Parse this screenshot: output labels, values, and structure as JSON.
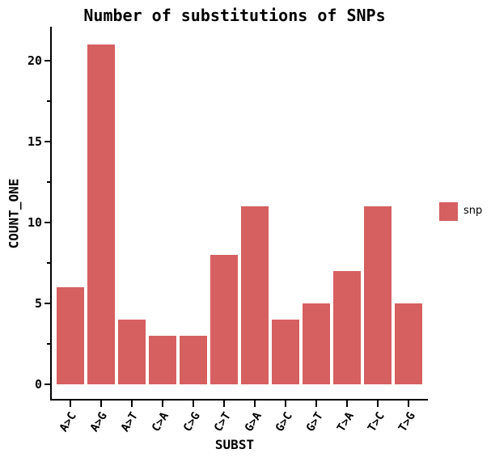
{
  "chart_data": {
    "type": "bar",
    "title": "Number of substitutions of SNPs",
    "xlabel": "SUBST",
    "ylabel": "COUNT_ONE",
    "categories": [
      "A>C",
      "A>G",
      "A>T",
      "C>A",
      "C>G",
      "C>T",
      "G>A",
      "G>C",
      "G>T",
      "T>A",
      "T>C",
      "T>G"
    ],
    "values": [
      6,
      21,
      4,
      3,
      3,
      8,
      11,
      4,
      5,
      7,
      11,
      5
    ],
    "series_name": "snp",
    "bar_color": "#d65f5f",
    "axis_color": "#000000",
    "background_color": "#ffffff",
    "ylim": [
      -1.05,
      22.05
    ],
    "yticks_major": [
      0,
      5,
      10,
      15,
      20
    ],
    "yticks_minor": [
      2.5,
      7.5,
      12.5,
      17.5
    ],
    "x_tick_rotation_deg": 58,
    "grid": false,
    "legend": {
      "position": "right",
      "entries": [
        {
          "label": "snp",
          "color": "#d65f5f"
        }
      ]
    }
  }
}
